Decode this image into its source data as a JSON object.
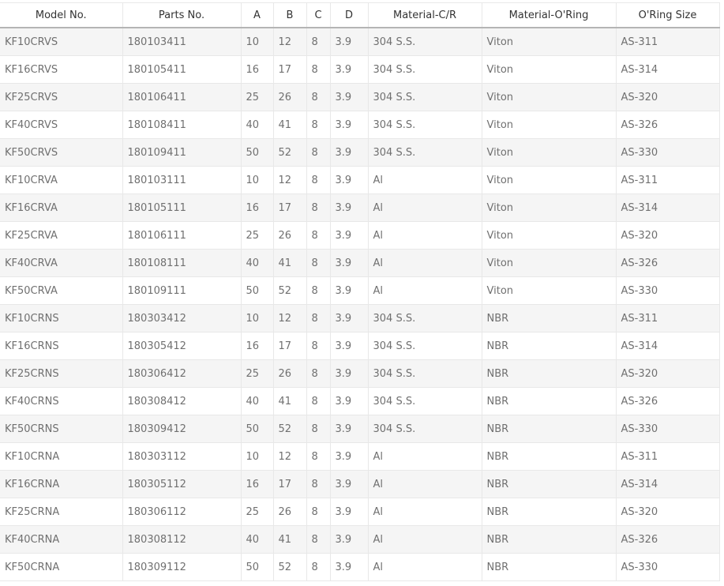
{
  "table": {
    "headers": [
      "Model No.",
      "Parts No.",
      "A",
      "B",
      "C",
      "D",
      "Material-C/R",
      "Material-O'Ring",
      "O'Ring Size"
    ],
    "rows": [
      [
        "KF10CRVS",
        "180103411",
        "10",
        "12",
        "8",
        "3.9",
        "304 S.S.",
        "Viton",
        "AS-311"
      ],
      [
        "KF16CRVS",
        "180105411",
        "16",
        "17",
        "8",
        "3.9",
        "304 S.S.",
        "Viton",
        "AS-314"
      ],
      [
        "KF25CRVS",
        "180106411",
        "25",
        "26",
        "8",
        "3.9",
        "304 S.S.",
        "Viton",
        "AS-320"
      ],
      [
        "KF40CRVS",
        "180108411",
        "40",
        "41",
        "8",
        "3.9",
        "304 S.S.",
        "Viton",
        "AS-326"
      ],
      [
        "KF50CRVS",
        "180109411",
        "50",
        "52",
        "8",
        "3.9",
        "304 S.S.",
        "Viton",
        "AS-330"
      ],
      [
        "KF10CRVA",
        "180103111",
        "10",
        "12",
        "8",
        "3.9",
        "Al",
        "Viton",
        "AS-311"
      ],
      [
        "KF16CRVA",
        "180105111",
        "16",
        "17",
        "8",
        "3.9",
        "Al",
        "Viton",
        "AS-314"
      ],
      [
        "KF25CRVA",
        "180106111",
        "25",
        "26",
        "8",
        "3.9",
        "Al",
        "Viton",
        "AS-320"
      ],
      [
        "KF40CRVA",
        "180108111",
        "40",
        "41",
        "8",
        "3.9",
        "Al",
        "Viton",
        "AS-326"
      ],
      [
        "KF50CRVA",
        "180109111",
        "50",
        "52",
        "8",
        "3.9",
        "Al",
        "Viton",
        "AS-330"
      ],
      [
        "KF10CRNS",
        "180303412",
        "10",
        "12",
        "8",
        "3.9",
        "304 S.S.",
        "NBR",
        "AS-311"
      ],
      [
        "KF16CRNS",
        "180305412",
        "16",
        "17",
        "8",
        "3.9",
        "304 S.S.",
        "NBR",
        "AS-314"
      ],
      [
        "KF25CRNS",
        "180306412",
        "25",
        "26",
        "8",
        "3.9",
        "304 S.S.",
        "NBR",
        "AS-320"
      ],
      [
        "KF40CRNS",
        "180308412",
        "40",
        "41",
        "8",
        "3.9",
        "304 S.S.",
        "NBR",
        "AS-326"
      ],
      [
        "KF50CRNS",
        "180309412",
        "50",
        "52",
        "8",
        "3.9",
        "304 S.S.",
        "NBR",
        "AS-330"
      ],
      [
        "KF10CRNA",
        "180303112",
        "10",
        "12",
        "8",
        "3.9",
        "Al",
        "NBR",
        "AS-311"
      ],
      [
        "KF16CRNA",
        "180305112",
        "16",
        "17",
        "8",
        "3.9",
        "Al",
        "NBR",
        "AS-314"
      ],
      [
        "KF25CRNA",
        "180306112",
        "25",
        "26",
        "8",
        "3.9",
        "Al",
        "NBR",
        "AS-320"
      ],
      [
        "KF40CRNA",
        "180308112",
        "40",
        "41",
        "8",
        "3.9",
        "Al",
        "NBR",
        "AS-326"
      ],
      [
        "KF50CRNA",
        "180309112",
        "50",
        "52",
        "8",
        "3.9",
        "Al",
        "NBR",
        "AS-330"
      ]
    ]
  }
}
